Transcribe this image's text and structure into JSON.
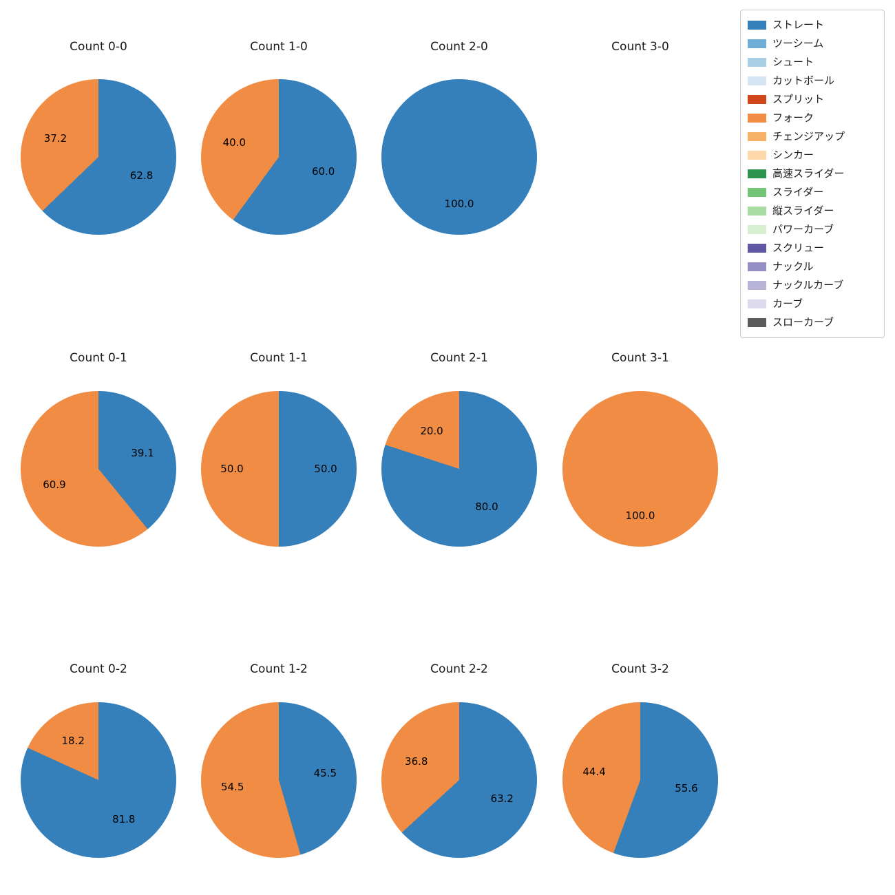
{
  "figure": {
    "background": "#ffffff",
    "text_color": "#1a1a1a"
  },
  "legend": {
    "position": "top-right",
    "items": [
      {
        "label": "ストレート",
        "color": "#3580bb"
      },
      {
        "label": "ツーシーム",
        "color": "#6faed6"
      },
      {
        "label": "シュート",
        "color": "#a9cfe5"
      },
      {
        "label": "カットボール",
        "color": "#d6e5f4"
      },
      {
        "label": "スプリット",
        "color": "#d0481a"
      },
      {
        "label": "フォーク",
        "color": "#f08c43"
      },
      {
        "label": "チェンジアップ",
        "color": "#f8b267"
      },
      {
        "label": "シンカー",
        "color": "#fcd8ab"
      },
      {
        "label": "高速スライダー",
        "color": "#2c944c"
      },
      {
        "label": "スライダー",
        "color": "#74c476"
      },
      {
        "label": "縦スライダー",
        "color": "#a8dca3"
      },
      {
        "label": "パワーカーブ",
        "color": "#d7efd1"
      },
      {
        "label": "スクリュー",
        "color": "#6057a5"
      },
      {
        "label": "ナックル",
        "color": "#938fc4"
      },
      {
        "label": "ナックルカーブ",
        "color": "#b7b4d8"
      },
      {
        "label": "カーブ",
        "color": "#dcdaec"
      },
      {
        "label": "スローカーブ",
        "color": "#5b5b5b"
      }
    ]
  },
  "chart_data": {
    "type": "pie",
    "layout": "4x3 grid of pie charts, slices start at 12 o'clock and run clockwise, percent labels at 0.6 radius",
    "grid": [
      {
        "title": "Count 0-0",
        "slices": [
          {
            "name": "ストレート",
            "value": 62.8
          },
          {
            "name": "フォーク",
            "value": 37.2
          }
        ]
      },
      {
        "title": "Count 1-0",
        "slices": [
          {
            "name": "ストレート",
            "value": 60.0
          },
          {
            "name": "フォーク",
            "value": 40.0
          }
        ]
      },
      {
        "title": "Count 2-0",
        "slices": [
          {
            "name": "ストレート",
            "value": 100.0
          }
        ]
      },
      {
        "title": "Count 3-0",
        "slices": []
      },
      {
        "title": "Count 0-1",
        "slices": [
          {
            "name": "ストレート",
            "value": 39.1
          },
          {
            "name": "フォーク",
            "value": 60.9
          }
        ]
      },
      {
        "title": "Count 1-1",
        "slices": [
          {
            "name": "ストレート",
            "value": 50.0
          },
          {
            "name": "フォーク",
            "value": 50.0
          }
        ]
      },
      {
        "title": "Count 2-1",
        "slices": [
          {
            "name": "ストレート",
            "value": 80.0
          },
          {
            "name": "フォーク",
            "value": 20.0
          }
        ]
      },
      {
        "title": "Count 3-1",
        "slices": [
          {
            "name": "フォーク",
            "value": 100.0
          }
        ]
      },
      {
        "title": "Count 0-2",
        "slices": [
          {
            "name": "ストレート",
            "value": 81.8
          },
          {
            "name": "フォーク",
            "value": 18.2
          }
        ]
      },
      {
        "title": "Count 1-2",
        "slices": [
          {
            "name": "ストレート",
            "value": 45.5
          },
          {
            "name": "フォーク",
            "value": 54.5
          }
        ]
      },
      {
        "title": "Count 2-2",
        "slices": [
          {
            "name": "ストレート",
            "value": 63.2
          },
          {
            "name": "フォーク",
            "value": 36.8
          }
        ]
      },
      {
        "title": "Count 3-2",
        "slices": [
          {
            "name": "ストレート",
            "value": 55.6
          },
          {
            "name": "フォーク",
            "value": 44.4
          }
        ]
      }
    ]
  }
}
